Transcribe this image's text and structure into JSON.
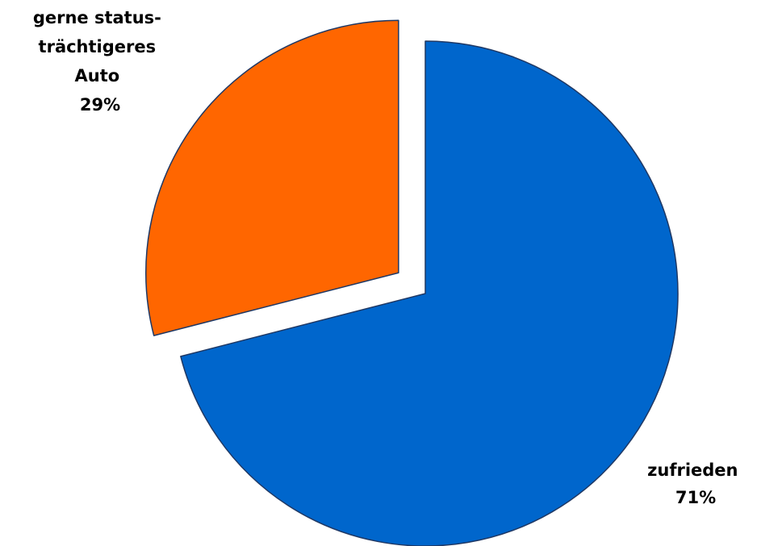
{
  "chart_data": {
    "type": "pie",
    "title": "",
    "slices": [
      {
        "label_lines": [
          "zufrieden"
        ],
        "value": 71,
        "value_label": "71%",
        "color": "#0066cc"
      },
      {
        "label_lines": [
          "gerne status-",
          "trächtigeres",
          "Auto"
        ],
        "value": 29,
        "value_label": "29%",
        "color": "#ff6600",
        "exploded": true
      }
    ],
    "legend": "none"
  }
}
